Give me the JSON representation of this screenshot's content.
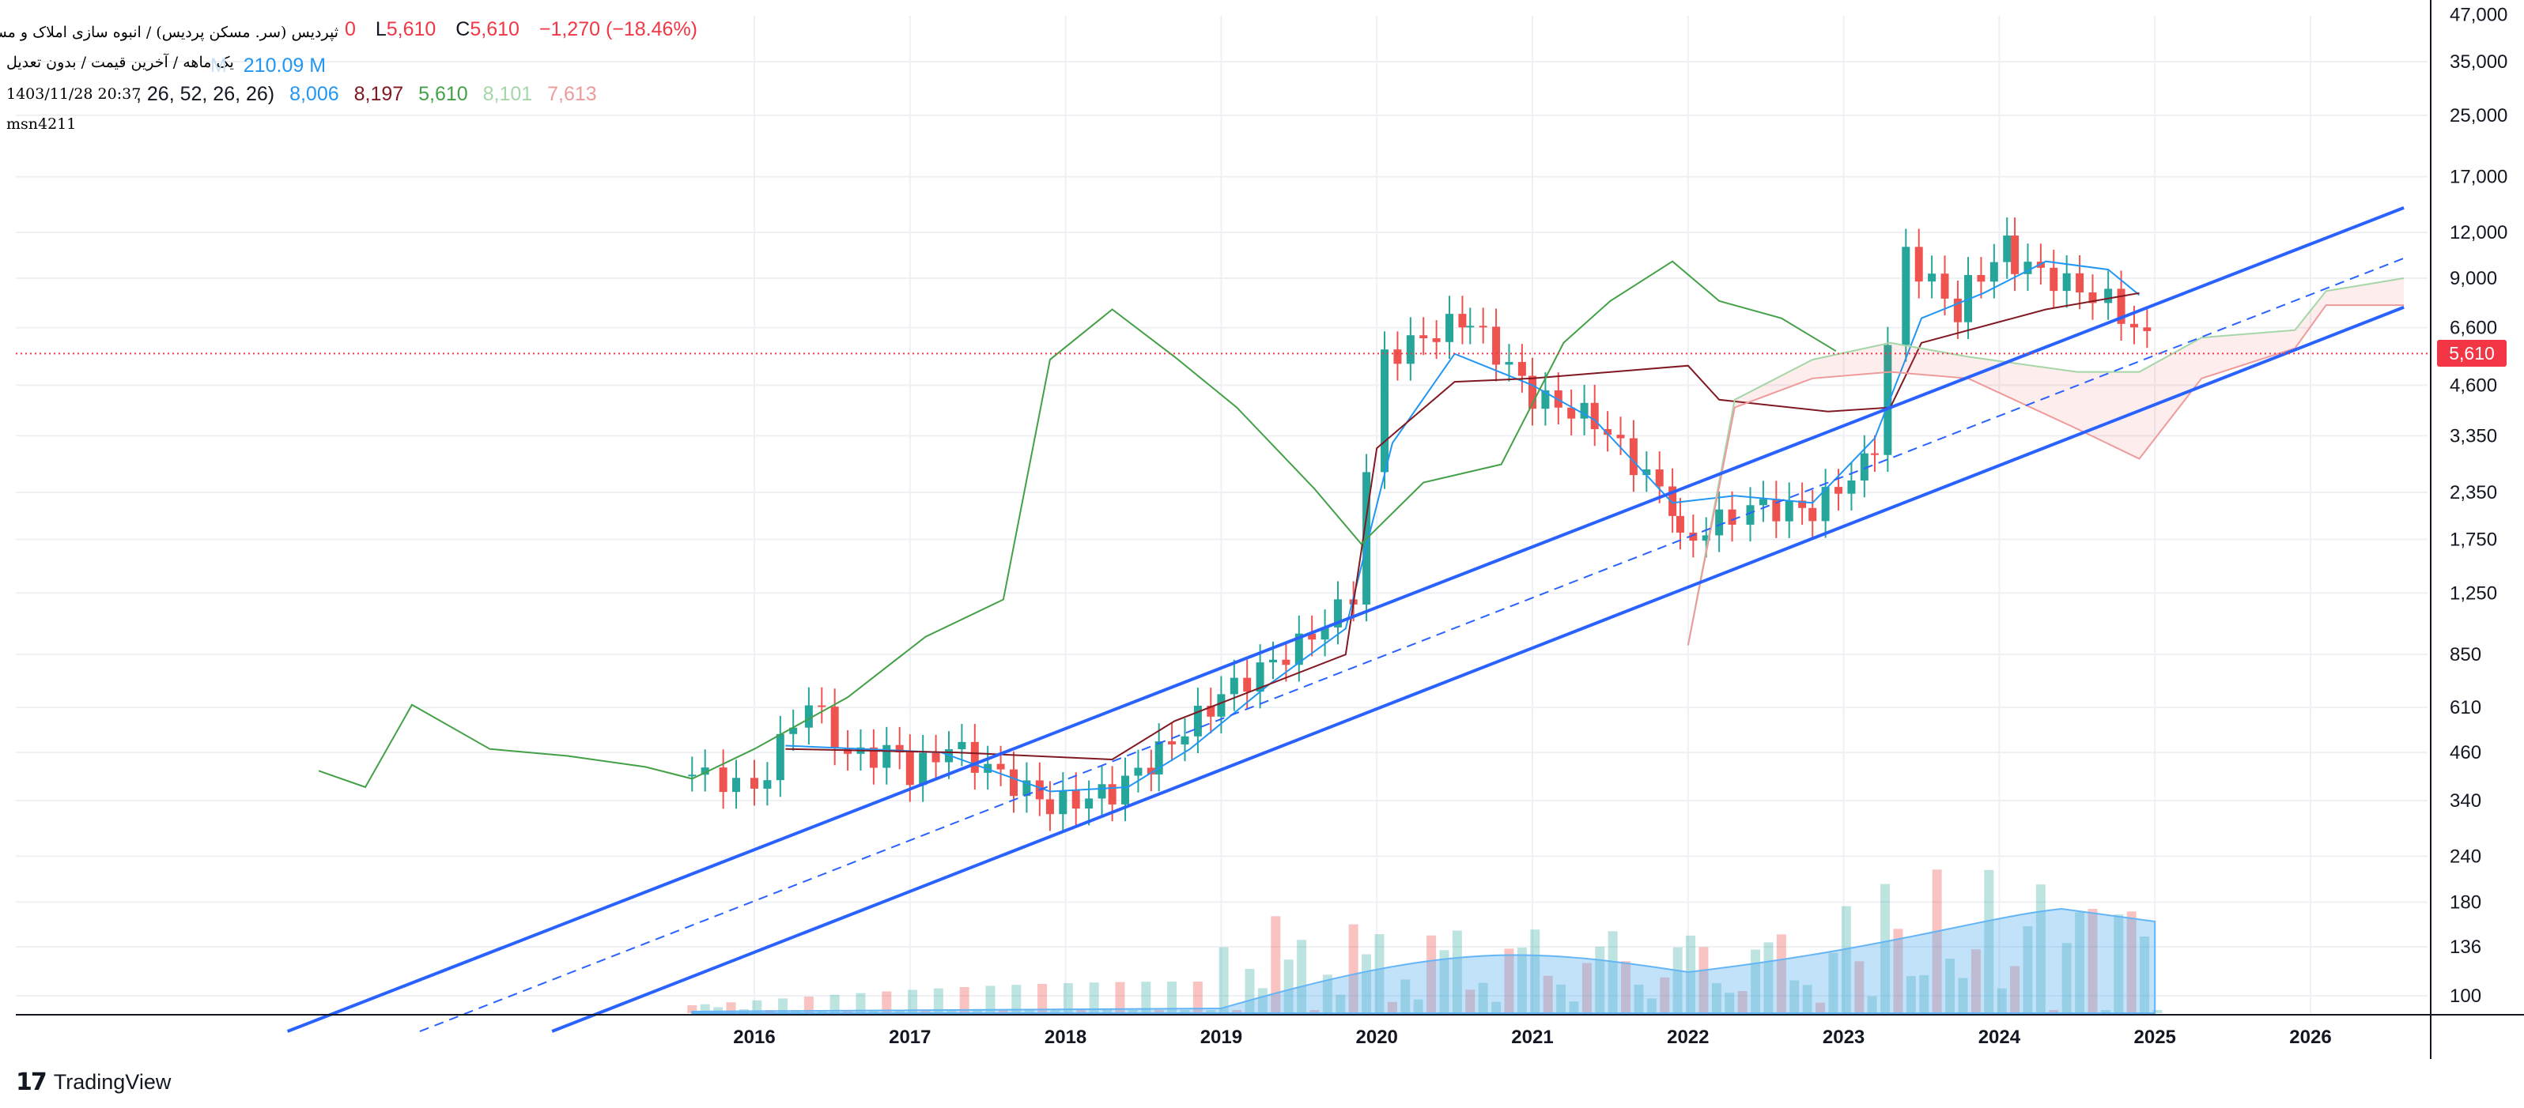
{
  "header": {
    "symbol_name": "ثپردیس (سر. مسکن پردیس) / انبوه سازی املاک و مستغلات",
    "interval_info": "یک ماهه / آخرین قیمت / بدون تعدیل",
    "datetime": "1403/11/28 20:37",
    "author": "msn4211",
    "ohlc_open_fragment": "0",
    "low_label": "L",
    "low_value": "5,610",
    "close_label": "C",
    "close_value": "5,610",
    "change": "−1,270 (−18.46%)",
    "volume_hidden": "M",
    "volume_ma": "210.09 M",
    "ichimoku_params": ", 26, 52, 26, 26)",
    "ichimoku_values": [
      "8,006",
      "8,197",
      "5,610",
      "8,101",
      "7,613"
    ]
  },
  "colors": {
    "up": "#26a69a",
    "down": "#ef5350",
    "conversion": "#2196f3",
    "base": "#801922",
    "lagging": "#43a047",
    "lead_a": "#a5d6a7",
    "lead_b": "#ef9a9a",
    "channel": "#2962ff",
    "volume_ma": "#90caf9"
  },
  "branding": {
    "logo_text": "TradingView"
  },
  "chart_data": {
    "type": "candlestick",
    "title": "",
    "scale": "log",
    "x_ticks": [
      "2016",
      "2017",
      "2018",
      "2019",
      "2020",
      "2021",
      "2022",
      "2023",
      "2024",
      "2025",
      "2026"
    ],
    "y_ticks": [
      "47,000",
      "35,000",
      "25,000",
      "17,000",
      "12,000",
      "9,000",
      "6,600",
      "4,600",
      "3,350",
      "2,350",
      "1,750",
      "1,250",
      "850",
      "610",
      "460",
      "340",
      "240",
      "180",
      "136",
      "100"
    ],
    "ylim": [
      80,
      47000
    ],
    "last_price": "5,610",
    "legend": "top-left",
    "grid": true
  }
}
